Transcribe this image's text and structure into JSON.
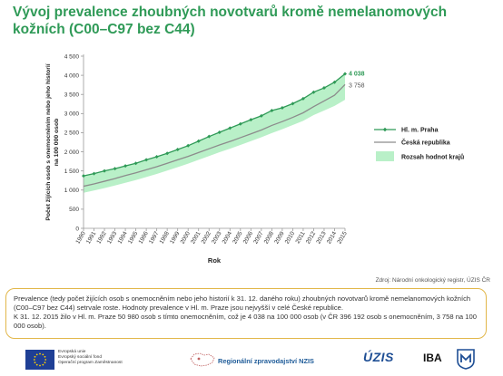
{
  "title": "Vývoj prevalence zhoubných novotvarů kromě nemelanomových kožních (C00–C97 bez C44)",
  "source": "Zdroj: Národní onkologický registr, ÚZIS ČR",
  "note": "Prevalence (tedy počet žijících osob s onemocněním nebo jeho historií k 31. 12. daného roku) zhoubných novotvarů kromě nemelanomových kožních (C00–C97 bez C44) setrvale roste. Hodnoty prevalence v Hl. m. Praze jsou nejvyšší v celé České republice.\nK 31. 12. 2015 žilo v Hl. m. Praze 50 980 osob s tímto onemocněním, což je 4 038 na 100 000 osob (v ČR 396 192 osob s onemocněním, 3 758 na 100 000 osob).",
  "footer": {
    "eu_text": [
      "Evropská unie",
      "Evropský sociální fond",
      "Operační program Zaměstnanost"
    ],
    "nzis_label": "Regionální zpravodajství NZIS",
    "uzis_logo": "ÚZIS",
    "iba_logo": "IBA"
  },
  "colors": {
    "praha": "#2f9a57",
    "cr": "#8c8c8c",
    "band": "#b9f0c8",
    "title": "#2f9a57",
    "note_border": "#e2b74a"
  },
  "chart_data": {
    "type": "line",
    "xlabel": "Rok",
    "ylabel": "Počet žijících osob s onemocněním nebo jeho historií na 100 000 osob",
    "ylim": [
      0,
      4500
    ],
    "yticks": [
      0,
      500,
      1000,
      1500,
      2000,
      2500,
      3000,
      3500,
      4000,
      4500
    ],
    "ytick_labels": [
      "0",
      "500",
      "1 000",
      "1 500",
      "2 000",
      "2 500",
      "3 000",
      "3 500",
      "4 000",
      "4 500"
    ],
    "x": [
      "1990",
      "1991",
      "1992",
      "1993",
      "1994",
      "1995",
      "1996",
      "1997",
      "1998",
      "1999",
      "2000",
      "2001",
      "2002",
      "2003",
      "2004",
      "2005",
      "2006",
      "2007",
      "2008",
      "2009",
      "2010",
      "2011",
      "2012",
      "2013",
      "2014",
      "2015"
    ],
    "series": [
      {
        "name": "Hl. m. Praha",
        "values": [
          1370,
          1430,
          1500,
          1560,
          1630,
          1700,
          1790,
          1870,
          1960,
          2060,
          2160,
          2280,
          2400,
          2510,
          2620,
          2730,
          2840,
          2940,
          3080,
          3150,
          3260,
          3390,
          3560,
          3670,
          3820,
          4038
        ]
      },
      {
        "name": "Česká republika",
        "values": [
          1100,
          1160,
          1230,
          1300,
          1380,
          1450,
          1530,
          1610,
          1700,
          1790,
          1880,
          1980,
          2080,
          2180,
          2270,
          2370,
          2470,
          2570,
          2690,
          2790,
          2900,
          3020,
          3180,
          3330,
          3480,
          3758
        ]
      }
    ],
    "range_band": {
      "name": "Rozsah hodnot krajů",
      "lower": [
        930,
        990,
        1050,
        1120,
        1190,
        1260,
        1340,
        1420,
        1510,
        1600,
        1690,
        1790,
        1890,
        1990,
        2080,
        2180,
        2280,
        2380,
        2490,
        2590,
        2700,
        2810,
        2960,
        3080,
        3200,
        3360
      ],
      "upper": [
        1370,
        1430,
        1500,
        1560,
        1630,
        1700,
        1790,
        1870,
        1960,
        2060,
        2160,
        2280,
        2400,
        2510,
        2620,
        2730,
        2840,
        2940,
        3080,
        3150,
        3260,
        3390,
        3560,
        3670,
        3820,
        4038
      ]
    },
    "end_labels": {
      "praha": "4 038",
      "cr": "3 758"
    },
    "legend_placement": "right",
    "grid": false
  }
}
